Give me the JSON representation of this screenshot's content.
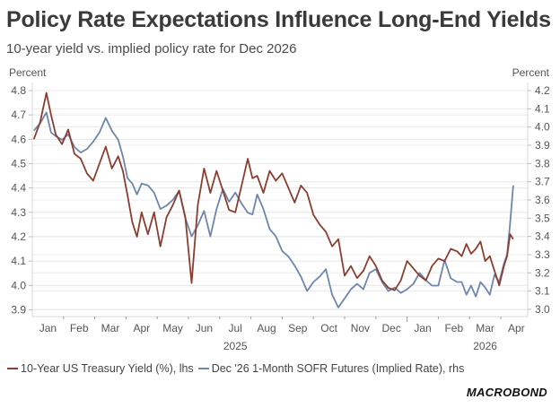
{
  "chart_data": {
    "type": "line",
    "title": "Policy Rate Expectations Influence Long-End Yields",
    "subtitle": "10-year yield vs. implied policy rate for Dec 2026",
    "left_axis": {
      "label": "Percent",
      "ylim": [
        3.87,
        4.82
      ],
      "ticks": [
        4.8,
        4.7,
        4.6,
        4.5,
        4.4,
        4.3,
        4.2,
        4.1,
        4.0,
        3.9
      ]
    },
    "right_axis": {
      "label": "Percent",
      "ylim": [
        2.99,
        4.21
      ],
      "ticks": [
        4.2,
        4.1,
        4.0,
        3.9,
        3.8,
        3.7,
        3.6,
        3.5,
        3.4,
        3.3,
        3.2,
        3.1,
        3.0
      ]
    },
    "x_axis": {
      "months": [
        "Jan",
        "Feb",
        "Mar",
        "Apr",
        "May",
        "Jun",
        "Jul",
        "Aug",
        "Sep",
        "Oct",
        "Nov",
        "Dec",
        "Jan",
        "Feb",
        "Mar",
        "Apr"
      ],
      "years": [
        {
          "label": "2025",
          "month_index": 6
        },
        {
          "label": "2026",
          "month_index": 14
        }
      ],
      "start": "2025-01-01",
      "end": "2026-04-30"
    },
    "grid": true,
    "legend_position": "bottom-left",
    "x_months_from_start": [
      0.05,
      0.25,
      0.45,
      0.6,
      0.75,
      0.95,
      1.15,
      1.35,
      1.55,
      1.75,
      1.95,
      2.15,
      2.35,
      2.55,
      2.75,
      2.9,
      3.05,
      3.2,
      3.35,
      3.5,
      3.7,
      3.9,
      4.1,
      4.3,
      4.5,
      4.7,
      4.9,
      5.1,
      5.3,
      5.5,
      5.7,
      5.9,
      6.1,
      6.3,
      6.5,
      6.7,
      6.9,
      7.05,
      7.2,
      7.4,
      7.6,
      7.8,
      8.0,
      8.2,
      8.4,
      8.6,
      8.8,
      9.0,
      9.2,
      9.4,
      9.6,
      9.8,
      10.0,
      10.2,
      10.4,
      10.6,
      10.8,
      11.0,
      11.2,
      11.4,
      11.6,
      11.8,
      12.0,
      12.2,
      12.4,
      12.6,
      12.8,
      13.0,
      13.2,
      13.4,
      13.6,
      13.75,
      13.9,
      14.05,
      14.2,
      14.35,
      14.5,
      14.65,
      14.8,
      14.95,
      15.1,
      15.2,
      15.3,
      15.4
    ],
    "series": [
      {
        "name": "10-Year US Treasury Yield (%), lhs",
        "axis": "left",
        "color": "#8b3e2f",
        "values": [
          4.6,
          4.67,
          4.79,
          4.7,
          4.62,
          4.58,
          4.64,
          4.54,
          4.52,
          4.46,
          4.43,
          4.5,
          4.57,
          4.48,
          4.53,
          4.47,
          4.37,
          4.26,
          4.2,
          4.3,
          4.21,
          4.3,
          4.16,
          4.28,
          4.33,
          4.39,
          4.28,
          4.01,
          4.33,
          4.48,
          4.38,
          4.47,
          4.39,
          4.31,
          4.3,
          4.41,
          4.52,
          4.44,
          4.45,
          4.38,
          4.47,
          4.43,
          4.46,
          4.4,
          4.34,
          4.41,
          4.38,
          4.29,
          4.25,
          4.22,
          4.16,
          4.19,
          4.04,
          4.08,
          4.03,
          4.06,
          4.12,
          4.08,
          4.02,
          3.99,
          3.98,
          4.02,
          4.1,
          4.07,
          4.04,
          4.02,
          4.08,
          4.11,
          4.1,
          4.15,
          4.14,
          4.12,
          4.17,
          4.13,
          4.15,
          4.18,
          4.1,
          4.12,
          4.06,
          4.0,
          4.08,
          4.12,
          4.21,
          4.19
        ]
      },
      {
        "name": "Dec '26 1-Month SOFR Futures (Implied Rate), rhs",
        "axis": "right",
        "color": "#6e86ab",
        "values": [
          3.98,
          4.02,
          4.08,
          3.97,
          3.95,
          3.93,
          3.96,
          3.89,
          3.86,
          3.88,
          3.92,
          3.97,
          4.05,
          3.98,
          3.93,
          3.84,
          3.72,
          3.69,
          3.63,
          3.69,
          3.68,
          3.64,
          3.55,
          3.57,
          3.6,
          3.65,
          3.5,
          3.4,
          3.46,
          3.54,
          3.4,
          3.55,
          3.66,
          3.59,
          3.64,
          3.58,
          3.53,
          3.52,
          3.63,
          3.55,
          3.44,
          3.4,
          3.32,
          3.29,
          3.24,
          3.18,
          3.1,
          3.15,
          3.18,
          3.22,
          3.08,
          3.01,
          3.06,
          3.11,
          3.14,
          3.11,
          3.2,
          3.22,
          3.15,
          3.1,
          3.12,
          3.09,
          3.11,
          3.14,
          3.2,
          3.16,
          3.13,
          3.13,
          3.27,
          3.17,
          3.15,
          3.15,
          3.08,
          3.13,
          3.07,
          3.15,
          3.12,
          3.08,
          3.19,
          3.15,
          3.25,
          3.3,
          3.47,
          3.68
        ]
      }
    ]
  },
  "header": {
    "title": "Policy Rate Expectations Influence Long-End Yields",
    "subtitle": "10-year yield vs. implied policy rate for Dec 2026"
  },
  "axis_units": {
    "left": "Percent",
    "right": "Percent"
  },
  "legend": {
    "items": [
      {
        "label": "10-Year US Treasury Yield (%), lhs",
        "color": "#8b3e2f"
      },
      {
        "label": "Dec '26 1-Month SOFR Futures (Implied Rate), rhs",
        "color": "#6e86ab"
      }
    ]
  },
  "branding": {
    "logo_text": "MACROBOND"
  }
}
